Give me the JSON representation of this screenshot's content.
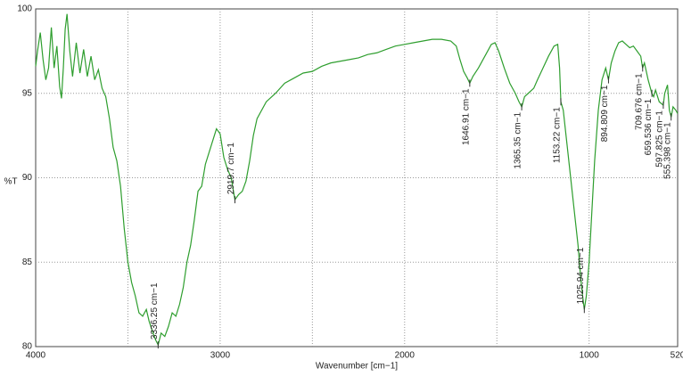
{
  "chart_data": {
    "type": "line",
    "xlabel": "Wavenumber [cm−1]",
    "ylabel": "%T",
    "xlim": [
      4000,
      520
    ],
    "ylim": [
      80,
      100
    ],
    "xticks": [
      4000,
      3000,
      2000,
      1000,
      520
    ],
    "yticks": [
      80,
      85,
      90,
      95,
      100
    ],
    "xgrid": [
      3500,
      2500,
      1500
    ],
    "grid": true,
    "color": "#2e9e2e",
    "x": [
      4000,
      3990,
      3975,
      3960,
      3945,
      3930,
      3915,
      3900,
      3885,
      3870,
      3860,
      3850,
      3840,
      3830,
      3815,
      3800,
      3780,
      3760,
      3740,
      3720,
      3700,
      3680,
      3660,
      3640,
      3620,
      3600,
      3580,
      3560,
      3540,
      3520,
      3500,
      3480,
      3460,
      3440,
      3420,
      3400,
      3385,
      3370,
      3350,
      3336,
      3320,
      3300,
      3280,
      3260,
      3240,
      3220,
      3200,
      3180,
      3160,
      3140,
      3120,
      3100,
      3080,
      3060,
      3040,
      3020,
      3000,
      2980,
      2960,
      2940,
      2920,
      2900,
      2880,
      2860,
      2840,
      2820,
      2800,
      2750,
      2700,
      2650,
      2600,
      2550,
      2500,
      2450,
      2400,
      2350,
      2300,
      2250,
      2200,
      2150,
      2100,
      2050,
      2000,
      1950,
      1900,
      1850,
      1800,
      1750,
      1720,
      1700,
      1680,
      1660,
      1647,
      1630,
      1600,
      1560,
      1530,
      1510,
      1490,
      1460,
      1430,
      1400,
      1380,
      1365,
      1350,
      1330,
      1300,
      1280,
      1250,
      1220,
      1190,
      1170,
      1160,
      1153,
      1140,
      1120,
      1100,
      1080,
      1060,
      1045,
      1035,
      1026,
      1015,
      1000,
      985,
      970,
      950,
      930,
      910,
      895,
      880,
      860,
      840,
      820,
      800,
      780,
      760,
      740,
      720,
      710,
      700,
      680,
      660,
      650,
      640,
      620,
      598,
      590,
      575,
      565,
      555,
      545,
      530,
      520
    ],
    "values": [
      96.6,
      97.5,
      98.6,
      97.0,
      95.8,
      96.5,
      98.9,
      96.5,
      97.8,
      95.4,
      94.7,
      96.5,
      98.8,
      99.7,
      97.5,
      96.0,
      98.0,
      96.2,
      97.6,
      96.0,
      97.2,
      95.8,
      96.4,
      95.3,
      94.8,
      93.5,
      91.8,
      91.0,
      89.5,
      87.0,
      85.0,
      83.8,
      83.0,
      82.0,
      81.8,
      82.2,
      81.5,
      81.0,
      80.4,
      80.1,
      80.8,
      80.6,
      81.2,
      82.0,
      81.8,
      82.5,
      83.5,
      85.0,
      86.0,
      87.5,
      89.2,
      89.5,
      90.8,
      91.5,
      92.2,
      92.9,
      92.6,
      91.2,
      90.5,
      90.0,
      88.7,
      89.0,
      89.2,
      89.8,
      91.0,
      92.5,
      93.5,
      94.5,
      95.0,
      95.6,
      95.9,
      96.2,
      96.3,
      96.6,
      96.8,
      96.9,
      97.0,
      97.1,
      97.3,
      97.4,
      97.6,
      97.8,
      97.9,
      98.0,
      98.1,
      98.2,
      98.2,
      98.1,
      97.8,
      97.0,
      96.3,
      95.9,
      95.6,
      96.0,
      96.5,
      97.3,
      97.9,
      98.0,
      97.5,
      96.5,
      95.6,
      95.0,
      94.5,
      94.2,
      94.8,
      95.0,
      95.3,
      95.8,
      96.5,
      97.2,
      97.8,
      97.9,
      96.5,
      94.5,
      94.0,
      92.0,
      90.0,
      88.0,
      86.0,
      84.0,
      83.0,
      82.2,
      83.0,
      85.0,
      88.0,
      91.0,
      94.0,
      95.8,
      96.5,
      95.8,
      96.8,
      97.5,
      98.0,
      98.1,
      97.9,
      97.7,
      97.8,
      97.5,
      97.2,
      96.5,
      96.8,
      95.8,
      95.0,
      94.8,
      95.2,
      94.5,
      94.3,
      95.0,
      95.5,
      94.0,
      93.6,
      94.2,
      94.0,
      93.8
    ],
    "annotations": [
      {
        "label": "3336.25 cm−1",
        "x": 3336.25,
        "y": 80.1
      },
      {
        "label": "2919.7 cm−1",
        "x": 2919.7,
        "y": 88.7
      },
      {
        "label": "1646.91 cm−1",
        "x": 1646.91,
        "y": 95.6
      },
      {
        "label": "1365.35 cm−1",
        "x": 1365.35,
        "y": 94.2
      },
      {
        "label": "1153.22 cm−1",
        "x": 1153.22,
        "y": 94.5
      },
      {
        "label": "1025.94 cm−1",
        "x": 1025.94,
        "y": 82.2
      },
      {
        "label": "894.809 cm−1",
        "x": 894.809,
        "y": 95.8
      },
      {
        "label": "709.676 cm−1",
        "x": 709.676,
        "y": 96.5
      },
      {
        "label": "659.536 cm−1",
        "x": 659.536,
        "y": 95.0
      },
      {
        "label": "597.825 cm−1",
        "x": 597.825,
        "y": 94.3
      },
      {
        "label": "555.398 cm−1",
        "x": 555.398,
        "y": 93.6
      }
    ]
  }
}
